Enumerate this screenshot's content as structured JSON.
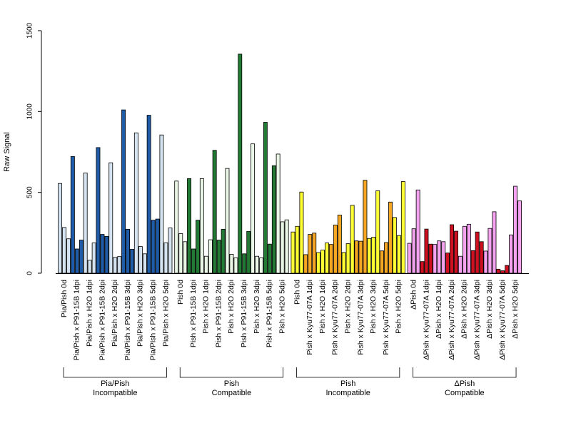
{
  "chart_data": {
    "type": "bar",
    "title": "",
    "xlabel": "",
    "ylabel": "Raw Signal",
    "ylim": [
      0,
      1500
    ],
    "yticks": [
      0,
      500,
      1000,
      1500
    ],
    "grid": false,
    "legend": "none",
    "colors": {
      "light_blue": "#d5e3f0",
      "dark_blue": "#1f5ba6",
      "light_green": "#eaf6e6",
      "dark_green": "#237a35",
      "yellow": "#ffff33",
      "orange": "#f5a623",
      "light_pink": "#f5a3f0",
      "red": "#cf1020"
    },
    "groups": [
      {
        "label_line1": "Pia/Pish",
        "label_line2": "Incompatible",
        "categories": [
          {
            "label": "Pia/Pish 0d",
            "color": "light_blue",
            "values": [
              555,
              283,
              213
            ]
          },
          {
            "label": "Pia/Pish x P91-15B 1dpi",
            "color": "dark_blue",
            "values": [
              722,
              150,
              205
            ]
          },
          {
            "label": "Pia/Pish x H2O 1dpi",
            "color": "light_blue",
            "values": [
              620,
              80,
              187
            ]
          },
          {
            "label": "Pia/Pish x P91-15B 2dpi",
            "color": "dark_blue",
            "values": [
              777,
              240,
              228
            ]
          },
          {
            "label": "Pia/Pish x H2O 2dpi",
            "color": "light_blue",
            "values": [
              683,
              98,
              103
            ]
          },
          {
            "label": "Pia/Pish x P91-15B 3dpi",
            "color": "dark_blue",
            "values": [
              1010,
              272,
              148
            ]
          },
          {
            "label": "Pia/Pish x H2O 3dpi",
            "color": "light_blue",
            "values": [
              868,
              165,
              120
            ]
          },
          {
            "label": "Pia/Pish x P91-15B 5dpi",
            "color": "dark_blue",
            "values": [
              977,
              328,
              335
            ]
          },
          {
            "label": "Pia/Pish x H2O 5dpi",
            "color": "light_blue",
            "values": [
              855,
              188,
              280
            ]
          }
        ]
      },
      {
        "label_line1": "Pish",
        "label_line2": "Compatible",
        "categories": [
          {
            "label": "Pish 0d",
            "color": "light_green",
            "values": [
              570,
              245,
              195
            ]
          },
          {
            "label": "Pish x P91-15B 1dpi",
            "color": "dark_green",
            "values": [
              585,
              150,
              328
            ]
          },
          {
            "label": "Pish x H2O 1dpi",
            "color": "light_green",
            "values": [
              585,
              105,
              207
            ]
          },
          {
            "label": "Pish x P91-15B 2dpi",
            "color": "dark_green",
            "values": [
              760,
              205,
              272
            ]
          },
          {
            "label": "Pish x H2O 2dpi",
            "color": "light_green",
            "values": [
              648,
              117,
              95
            ]
          },
          {
            "label": "Pish x P91-15B 3dpi",
            "color": "dark_green",
            "values": [
              1355,
              120,
              258
            ]
          },
          {
            "label": "Pish x H2O 3dpi",
            "color": "light_green",
            "values": [
              800,
              105,
              95
            ]
          },
          {
            "label": "Pish x P91-15B 5dpi",
            "color": "dark_green",
            "values": [
              933,
              180,
              665
            ]
          },
          {
            "label": "Pish x H2O 5dpi",
            "color": "light_green",
            "values": [
              737,
              318,
              330
            ]
          }
        ]
      },
      {
        "label_line1": "Pish",
        "label_line2": "Incompatible",
        "categories": [
          {
            "label": "Pish 0d",
            "color": "yellow",
            "values": [
              255,
              290,
              502
            ]
          },
          {
            "label": "Pish x Kyu77-07A 1dpi",
            "color": "orange",
            "values": [
              115,
              240,
              248
            ]
          },
          {
            "label": "Pish x H2O 1dpi",
            "color": "yellow",
            "values": [
              128,
              143,
              187
            ]
          },
          {
            "label": "Pish x Kyu77-07A 2dpi",
            "color": "orange",
            "values": [
              178,
              298,
              360
            ]
          },
          {
            "label": "Pish x H2O 2dpi",
            "color": "yellow",
            "values": [
              128,
              183,
              420
            ]
          },
          {
            "label": "Pish x Kyu77-07A 3dpi",
            "color": "orange",
            "values": [
              200,
              198,
              575
            ]
          },
          {
            "label": "Pish x H2O 3dpi",
            "color": "yellow",
            "values": [
              215,
              223,
              510
            ]
          },
          {
            "label": "Pish x Kyu77-07A 5dpi",
            "color": "orange",
            "values": [
              138,
              190,
              440
            ]
          },
          {
            "label": "Pish x H2O 5dpi",
            "color": "yellow",
            "values": [
              345,
              233,
              567
            ]
          }
        ]
      },
      {
        "label_line1": "ΔPish",
        "label_line2": "Compatible",
        "categories": [
          {
            "label": "ΔPish 0d",
            "color": "light_pink",
            "values": [
              185,
              275,
              515
            ]
          },
          {
            "label": "ΔPish x Kyu77-07A 1dpi",
            "color": "red",
            "values": [
              72,
              273,
              180
            ]
          },
          {
            "label": "ΔPish x H2O 1dpi",
            "color": "light_pink",
            "values": [
              178,
              200,
              195
            ]
          },
          {
            "label": "ΔPish x Kyu77-07A 2dpi",
            "color": "red",
            "values": [
              125,
              300,
              260
            ]
          },
          {
            "label": "ΔPish x H2O 2dpi",
            "color": "light_pink",
            "values": [
              105,
              290,
              303
            ]
          },
          {
            "label": "ΔPish x Kyu77-07A 3dpi",
            "color": "red",
            "values": [
              140,
              255,
              195
            ]
          },
          {
            "label": "ΔPish x H2O 3dpi",
            "color": "light_pink",
            "values": [
              137,
              277,
              380
            ]
          },
          {
            "label": "ΔPish x Kyu77-07A 5dpi",
            "color": "red",
            "values": [
              25,
              15,
              48
            ]
          },
          {
            "label": "ΔPish x H2O 5dpi",
            "color": "light_pink",
            "values": [
              237,
              538,
              447
            ]
          }
        ]
      }
    ]
  }
}
